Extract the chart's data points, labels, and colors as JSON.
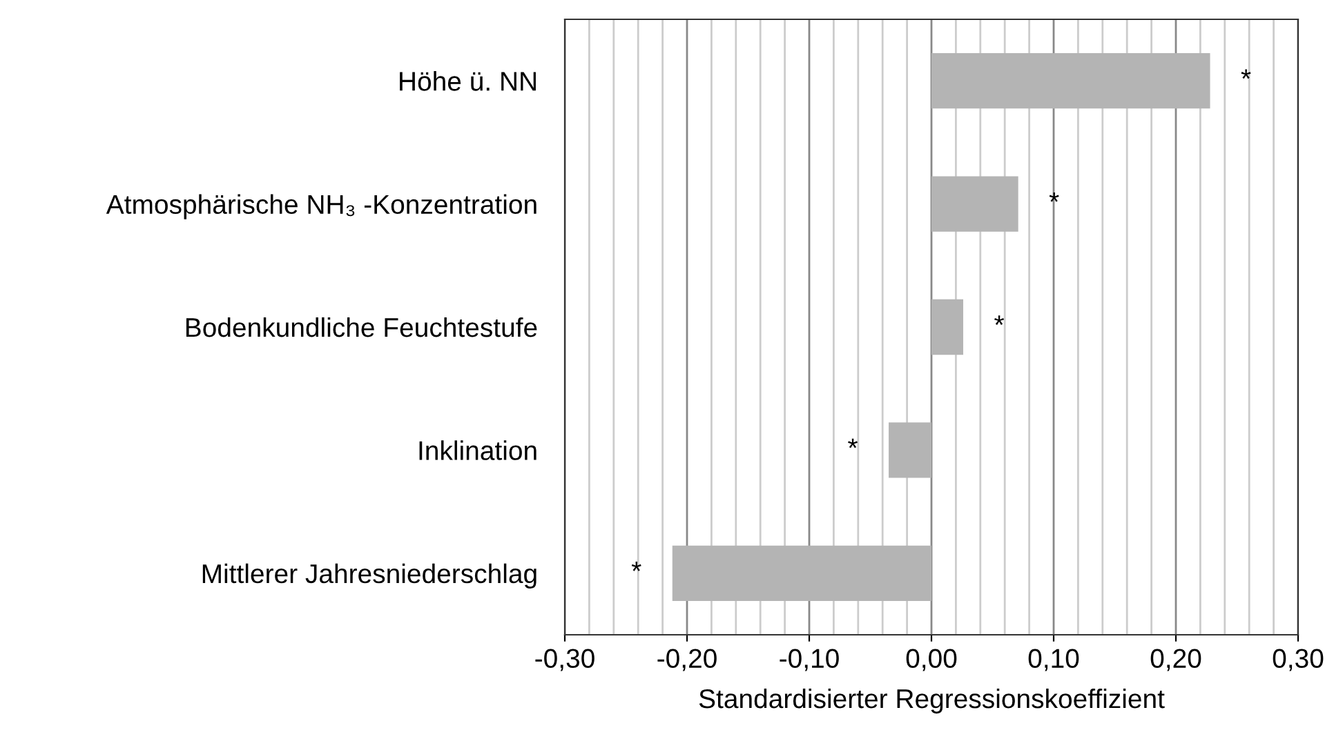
{
  "chart_data": {
    "type": "bar",
    "orientation": "horizontal",
    "xlabel": "Standardisierter Regressionskoeffizient",
    "categories": [
      "Höhe ü. NN",
      "Atmosphärische NH₃ -Konzentration",
      "Bodenkundliche Feuchtestufe",
      "Inklination",
      "Mittlerer Jahresniederschlag"
    ],
    "values": [
      0.228,
      0.071,
      0.026,
      -0.035,
      -0.212
    ],
    "color": "#b4b4b4",
    "xlim": [
      -0.3,
      0.3
    ],
    "xticks": [
      {
        "value": -0.3,
        "label": "-0,30"
      },
      {
        "value": -0.28,
        "label": null
      },
      {
        "value": -0.26,
        "label": null
      },
      {
        "value": -0.24,
        "label": null
      },
      {
        "value": -0.22,
        "label": null
      },
      {
        "value": -0.2,
        "label": "-0,20"
      },
      {
        "value": -0.18,
        "label": null
      },
      {
        "value": -0.16,
        "label": null
      },
      {
        "value": -0.14,
        "label": null
      },
      {
        "value": -0.12,
        "label": null
      },
      {
        "value": -0.1,
        "label": "-0,10"
      },
      {
        "value": -0.08,
        "label": null
      },
      {
        "value": -0.06,
        "label": null
      },
      {
        "value": -0.04,
        "label": null
      },
      {
        "value": -0.02,
        "label": null
      },
      {
        "value": 0.0,
        "label": "0,00"
      },
      {
        "value": 0.02,
        "label": null
      },
      {
        "value": 0.04,
        "label": null
      },
      {
        "value": 0.06,
        "label": null
      },
      {
        "value": 0.08,
        "label": null
      },
      {
        "value": 0.1,
        "label": "0,10"
      },
      {
        "value": 0.12,
        "label": null
      },
      {
        "value": 0.14,
        "label": null
      },
      {
        "value": 0.16,
        "label": null
      },
      {
        "value": 0.18,
        "label": null
      },
      {
        "value": 0.2,
        "label": "0,20"
      },
      {
        "value": 0.22,
        "label": null
      },
      {
        "value": 0.24,
        "label": null
      },
      {
        "value": 0.26,
        "label": null
      },
      {
        "value": 0.28,
        "label": null
      },
      {
        "value": 0.3,
        "label": "0,30"
      }
    ],
    "grid": "x",
    "value_labels": [
      "*",
      "*",
      "*",
      "*",
      "*"
    ]
  }
}
